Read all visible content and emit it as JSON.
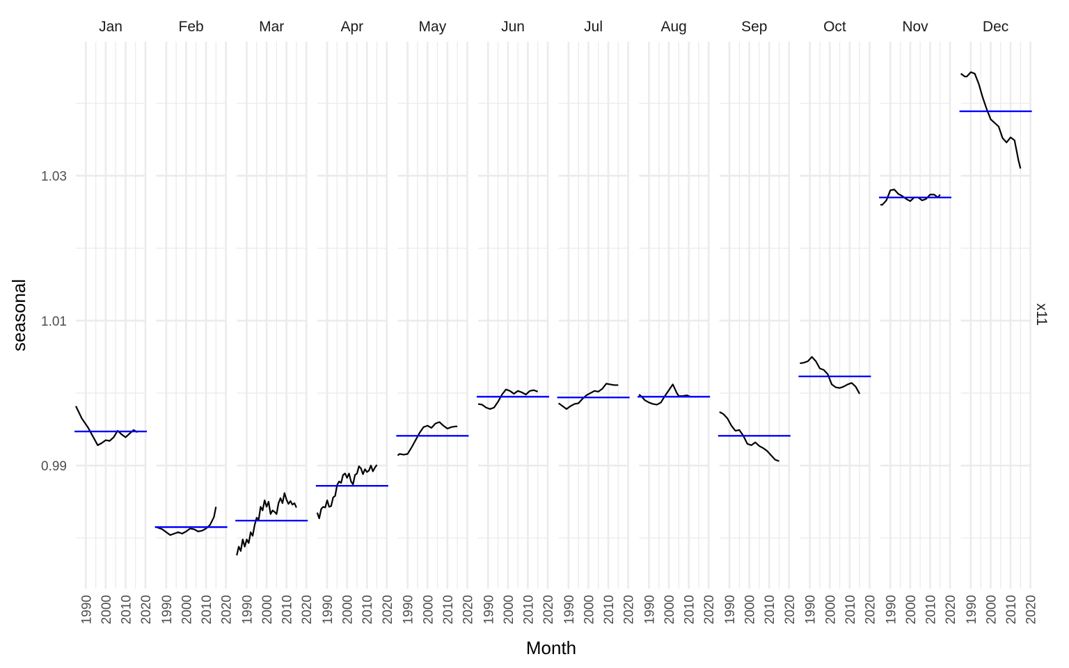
{
  "chart_data": {
    "type": "line",
    "xlabel": "Month",
    "ylabel": "seasonal",
    "strip_label": "x11",
    "x_range": [
      1985,
      2020
    ],
    "x_ticks": [
      1990,
      2000,
      2010,
      2020
    ],
    "y_range": [
      0.973,
      1.0485
    ],
    "y_ticks": [
      0.99,
      1.01,
      1.03
    ],
    "y_tick_labels": [
      "0.99",
      "1.01",
      "1.03"
    ],
    "grid": true,
    "colors": {
      "series": "#000000",
      "mean_line": "#0000ff",
      "grid": "#ebebeb"
    },
    "facets": [
      {
        "month": "Jan",
        "mean": 0.9947,
        "x": [
          1985,
          1988,
          1991,
          1994,
          1996,
          1998,
          2000,
          2002,
          2004,
          2006,
          2008,
          2010,
          2012,
          2014,
          2016
        ],
        "values": [
          0.9982,
          0.9965,
          0.9953,
          0.9938,
          0.9928,
          0.9931,
          0.9935,
          0.9934,
          0.9939,
          0.9948,
          0.9943,
          0.9939,
          0.9944,
          0.9949,
          0.9946
        ]
      },
      {
        "month": "Feb",
        "mean": 0.9815,
        "x": [
          1985,
          1988,
          1990,
          1992,
          1994,
          1996,
          1998,
          2000,
          2002,
          2004,
          2006,
          2008,
          2010,
          2012,
          2014,
          2015
        ],
        "values": [
          0.9815,
          0.9812,
          0.9808,
          0.9804,
          0.9806,
          0.9808,
          0.9806,
          0.9809,
          0.9813,
          0.9812,
          0.9809,
          0.981,
          0.9813,
          0.9818,
          0.9829,
          0.9843
        ]
      },
      {
        "month": "Mar",
        "mean": 0.9824,
        "x": [
          1985,
          1986,
          1987,
          1988,
          1989,
          1990,
          1991,
          1992,
          1993,
          1994,
          1995,
          1996,
          1997,
          1998,
          1999,
          2000,
          2001,
          2002,
          2003,
          2004,
          2005,
          2006,
          2007,
          2008,
          2009,
          2010,
          2011,
          2012,
          2013,
          2014,
          2015
        ],
        "values": [
          0.9776,
          0.9788,
          0.9782,
          0.9798,
          0.9788,
          0.9798,
          0.9793,
          0.9808,
          0.9803,
          0.9818,
          0.9828,
          0.9825,
          0.9843,
          0.9838,
          0.9852,
          0.9843,
          0.985,
          0.9833,
          0.9838,
          0.9836,
          0.9833,
          0.9848,
          0.9855,
          0.9848,
          0.9862,
          0.9853,
          0.9847,
          0.9851,
          0.9846,
          0.9848,
          0.9842
        ]
      },
      {
        "month": "Apr",
        "mean": 0.9872,
        "x": [
          1985,
          1986,
          1987,
          1988,
          1989,
          1990,
          1991,
          1992,
          1993,
          1994,
          1995,
          1996,
          1997,
          1998,
          1999,
          2000,
          2001,
          2002,
          2003,
          2004,
          2005,
          2006,
          2007,
          2008,
          2009,
          2010,
          2011,
          2012,
          2013,
          2014,
          2015
        ],
        "values": [
          0.9835,
          0.9827,
          0.984,
          0.9843,
          0.9842,
          0.9852,
          0.9843,
          0.9844,
          0.9856,
          0.9858,
          0.9873,
          0.9878,
          0.9876,
          0.9887,
          0.9889,
          0.9883,
          0.9889,
          0.9878,
          0.9874,
          0.9887,
          0.9889,
          0.9899,
          0.9896,
          0.9888,
          0.9895,
          0.9891,
          0.9893,
          0.99,
          0.9892,
          0.9897,
          0.9901
        ]
      },
      {
        "month": "May",
        "mean": 0.9941,
        "x": [
          1985,
          1986,
          1988,
          1990,
          1992,
          1994,
          1996,
          1998,
          2000,
          2002,
          2004,
          2006,
          2008,
          2010,
          2012,
          2014,
          2015
        ],
        "values": [
          0.9914,
          0.9916,
          0.9915,
          0.9916,
          0.9925,
          0.9935,
          0.9945,
          0.9953,
          0.9955,
          0.9952,
          0.9958,
          0.996,
          0.9955,
          0.9951,
          0.9953,
          0.9954,
          0.9954
        ]
      },
      {
        "month": "Jun",
        "mean": 0.9995,
        "x": [
          1985,
          1987,
          1989,
          1991,
          1993,
          1995,
          1997,
          1999,
          2001,
          2003,
          2005,
          2007,
          2009,
          2011,
          2013,
          2015
        ],
        "values": [
          0.9985,
          0.9984,
          0.998,
          0.9978,
          0.998,
          0.9988,
          0.9998,
          1.0005,
          1.0003,
          0.9999,
          1.0003,
          1.0001,
          0.9998,
          1.0003,
          1.0004,
          1.0002
        ]
      },
      {
        "month": "Jul",
        "mean": 0.9994,
        "x": [
          1985,
          1987,
          1989,
          1991,
          1993,
          1995,
          1997,
          1999,
          2001,
          2003,
          2005,
          2007,
          2009,
          2011,
          2013,
          2015
        ],
        "values": [
          0.9986,
          0.9982,
          0.9978,
          0.9982,
          0.9985,
          0.9986,
          0.9992,
          0.9997,
          1.0,
          1.0003,
          1.0002,
          1.0006,
          1.0013,
          1.0012,
          1.0011,
          1.0011
        ]
      },
      {
        "month": "Aug",
        "mean": 0.9995,
        "x": [
          1985,
          1986,
          1988,
          1990,
          1992,
          1994,
          1996,
          1998,
          2000,
          2002,
          2004,
          2005,
          2007,
          2009,
          2011,
          2013,
          2015
        ],
        "values": [
          0.9998,
          0.9996,
          0.999,
          0.9987,
          0.9985,
          0.9984,
          0.9987,
          0.9996,
          1.0004,
          1.0012,
          1.0,
          0.9996,
          0.9996,
          0.9997,
          0.9995,
          0.9995,
          0.9995
        ]
      },
      {
        "month": "Sep",
        "mean": 0.9941,
        "x": [
          1985,
          1987,
          1989,
          1991,
          1993,
          1995,
          1997,
          1999,
          2001,
          2003,
          2005,
          2007,
          2009,
          2011,
          2013,
          2015
        ],
        "values": [
          0.9974,
          0.9971,
          0.9965,
          0.9955,
          0.9948,
          0.9949,
          0.9941,
          0.993,
          0.9928,
          0.9932,
          0.9927,
          0.9924,
          0.992,
          0.9914,
          0.9908,
          0.9906
        ]
      },
      {
        "month": "Oct",
        "mean": 1.0023,
        "x": [
          1985,
          1987,
          1989,
          1991,
          1993,
          1995,
          1997,
          1999,
          2001,
          2003,
          2005,
          2007,
          2009,
          2011,
          2013,
          2015
        ],
        "values": [
          1.0041,
          1.0042,
          1.0044,
          1.005,
          1.0044,
          1.0034,
          1.0032,
          1.0026,
          1.0012,
          1.0008,
          1.0007,
          1.0009,
          1.0012,
          1.0014,
          1.0009,
          0.9999
        ]
      },
      {
        "month": "Nov",
        "mean": 1.027,
        "x": [
          1985,
          1986,
          1988,
          1990,
          1992,
          1994,
          1996,
          1998,
          2000,
          2002,
          2004,
          2006,
          2008,
          2010,
          2012,
          2014,
          2015
        ],
        "values": [
          1.026,
          1.026,
          1.0266,
          1.028,
          1.0281,
          1.0275,
          1.0272,
          1.0268,
          1.0265,
          1.027,
          1.027,
          1.0266,
          1.0268,
          1.0274,
          1.0274,
          1.027,
          1.0274
        ]
      },
      {
        "month": "Dec",
        "mean": 1.0389,
        "x": [
          1985,
          1987,
          1988,
          1990,
          1992,
          1994,
          1996,
          1998,
          2000,
          2002,
          2004,
          2006,
          2008,
          2010,
          2012,
          2014,
          2015
        ],
        "values": [
          1.0441,
          1.0437,
          1.0437,
          1.0443,
          1.0441,
          1.0427,
          1.0408,
          1.0392,
          1.0378,
          1.0373,
          1.0368,
          1.0352,
          1.0346,
          1.0353,
          1.0349,
          1.0321,
          1.031
        ]
      }
    ]
  }
}
